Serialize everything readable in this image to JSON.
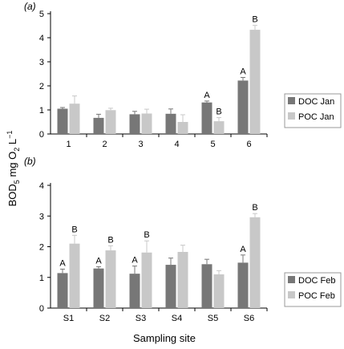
{
  "ylabel_main": "BOD",
  "ylabel_sub5": "5",
  "ylabel_mid": " mg O",
  "ylabel_sub2": "2",
  "ylabel_mid2": " L",
  "ylabel_sup": "−1",
  "xlabel": "Sampling site",
  "colors": {
    "doc": "#777777",
    "poc": "#c8c8c8",
    "axis": "#000000",
    "legend_border": "#999999"
  },
  "chart_data": [
    {
      "type": "bar",
      "panel_label": "(a)",
      "categories": [
        "1",
        "2",
        "3",
        "4",
        "5",
        "6"
      ],
      "ylim": [
        0,
        5
      ],
      "yticks": [
        "0",
        "1",
        "2",
        "3",
        "4",
        "5"
      ],
      "series": [
        {
          "name": "DOC Jan",
          "values": [
            1.05,
            0.67,
            0.82,
            0.84,
            1.31,
            2.22
          ],
          "errors": [
            0.05,
            0.15,
            0.12,
            0.2,
            0.06,
            0.13
          ]
        },
        {
          "name": "POC Jan",
          "values": [
            1.26,
            0.99,
            0.85,
            0.5,
            0.53,
            4.33
          ],
          "errors": [
            0.32,
            0.08,
            0.18,
            0.3,
            0.15,
            0.18
          ]
        }
      ],
      "significance": [
        {
          "site": "5",
          "series": "DOC Jan",
          "letter": "A"
        },
        {
          "site": "5",
          "series": "POC Jan",
          "letter": "B"
        },
        {
          "site": "6",
          "series": "DOC Jan",
          "letter": "A"
        },
        {
          "site": "6",
          "series": "POC Jan",
          "letter": "B"
        }
      ]
    },
    {
      "type": "bar",
      "panel_label": "(b)",
      "categories": [
        "S1",
        "S2",
        "S3",
        "S4",
        "S5",
        "S6"
      ],
      "ylim": [
        0,
        4
      ],
      "yticks": [
        "0",
        "1",
        "2",
        "3",
        "4"
      ],
      "series": [
        {
          "name": "DOC Feb",
          "values": [
            1.14,
            1.29,
            1.12,
            1.41,
            1.43,
            1.48
          ],
          "errors": [
            0.13,
            0.06,
            0.25,
            0.22,
            0.16,
            0.25
          ]
        },
        {
          "name": "POC Feb",
          "values": [
            2.1,
            1.88,
            1.81,
            1.83,
            1.1,
            2.96
          ],
          "errors": [
            0.27,
            0.15,
            0.38,
            0.22,
            0.12,
            0.12
          ]
        }
      ],
      "significance": [
        {
          "site": "S1",
          "series": "DOC Feb",
          "letter": "A"
        },
        {
          "site": "S1",
          "series": "POC Feb",
          "letter": "B"
        },
        {
          "site": "S2",
          "series": "DOC Feb",
          "letter": "A"
        },
        {
          "site": "S2",
          "series": "POC Feb",
          "letter": "B"
        },
        {
          "site": "S3",
          "series": "DOC Feb",
          "letter": "A"
        },
        {
          "site": "S3",
          "series": "POC Feb",
          "letter": "B"
        },
        {
          "site": "S6",
          "series": "DOC Feb",
          "letter": "A"
        },
        {
          "site": "S6",
          "series": "POC Feb",
          "letter": "B"
        }
      ]
    }
  ]
}
